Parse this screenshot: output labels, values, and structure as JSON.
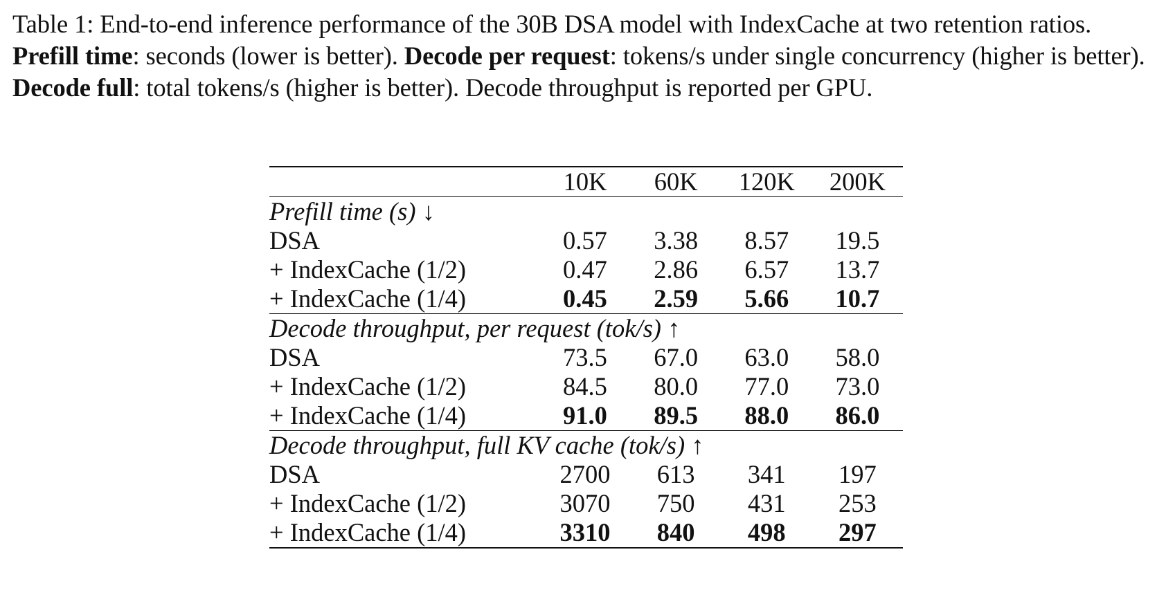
{
  "caption": {
    "prefix": "Table 1: End-to-end inference performance of the 30B DSA model with IndexCache at two retention ratios. ",
    "term1": "Prefill time",
    "desc1": ": seconds (lower is better). ",
    "term2": "Decode per request",
    "desc2": ": tokens/s under single concurrency (higher is better). ",
    "term3": "Decode full",
    "desc3": ": total tokens/s (higher is better). Decode throughput is reported per GPU."
  },
  "table": {
    "columns": [
      "10K",
      "60K",
      "120K",
      "200K"
    ],
    "sections": [
      {
        "title": "Prefill time (s) ↓",
        "rows": [
          {
            "label": "DSA",
            "values": [
              "0.57",
              "3.38",
              "8.57",
              "19.5"
            ]
          },
          {
            "label": "+ IndexCache (1/2)",
            "values": [
              "0.47",
              "2.86",
              "6.57",
              "13.7"
            ]
          },
          {
            "label": "+ IndexCache (1/4)",
            "values": [
              "0.45",
              "2.59",
              "5.66",
              "10.7"
            ]
          }
        ]
      },
      {
        "title": "Decode throughput, per request (tok/s) ↑",
        "rows": [
          {
            "label": "DSA",
            "values": [
              "73.5",
              "67.0",
              "63.0",
              "58.0"
            ]
          },
          {
            "label": "+ IndexCache (1/2)",
            "values": [
              "84.5",
              "80.0",
              "77.0",
              "73.0"
            ]
          },
          {
            "label": "+ IndexCache (1/4)",
            "values": [
              "91.0",
              "89.5",
              "88.0",
              "86.0"
            ]
          }
        ]
      },
      {
        "title": "Decode throughput, full KV cache (tok/s) ↑",
        "rows": [
          {
            "label": "DSA",
            "values": [
              "2700",
              "613",
              "341",
              "197"
            ]
          },
          {
            "label": "+ IndexCache (1/2)",
            "values": [
              "3070",
              "750",
              "431",
              "253"
            ]
          },
          {
            "label": "+ IndexCache (1/4)",
            "values": [
              "3310",
              "840",
              "498",
              "297"
            ]
          }
        ]
      }
    ]
  }
}
